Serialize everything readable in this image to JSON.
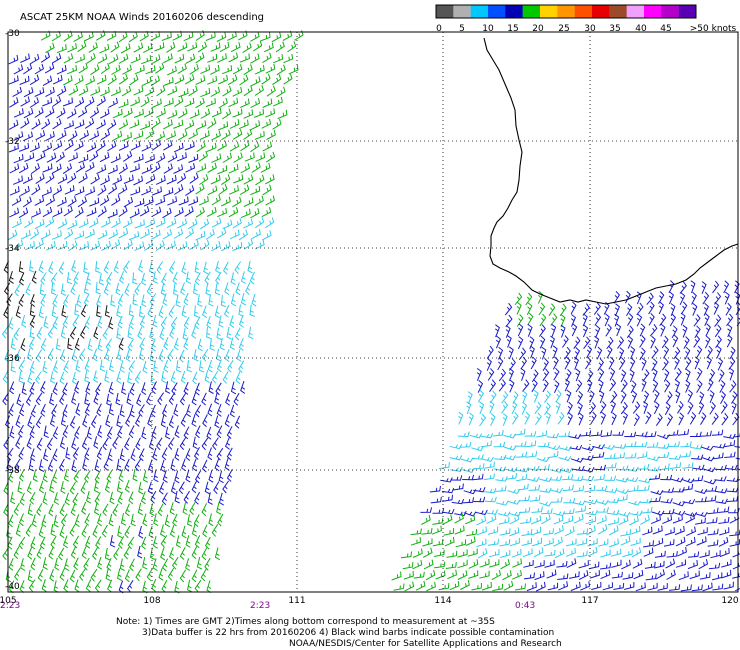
{
  "title": "ASCAT 25KM NOAA Winds 20160206 descending",
  "legend": {
    "segments": [
      {
        "color": "#555555"
      },
      {
        "color": "#b0b0b0"
      },
      {
        "color": "#00c8ff"
      },
      {
        "color": "#0050ff"
      },
      {
        "color": "#0000b4"
      },
      {
        "color": "#00c800"
      },
      {
        "color": "#ffd200"
      },
      {
        "color": "#ff9600"
      },
      {
        "color": "#ff5000"
      },
      {
        "color": "#e60000"
      },
      {
        "color": "#9c4a2a"
      },
      {
        "color": "#f0a0ff"
      },
      {
        "color": "#ff00ff"
      },
      {
        "color": "#b400c8"
      },
      {
        "color": "#5a00b4"
      }
    ],
    "labels": [
      "0",
      "5",
      "10",
      "15",
      "20",
      "25",
      "30",
      "35",
      "40",
      "45",
      ">50 knots"
    ]
  },
  "axes": {
    "lat_labels": [
      "-30",
      "-32",
      "-34",
      "-36",
      "-38",
      "-40"
    ],
    "lon_labels": [
      "105",
      "108",
      "111",
      "114",
      "117",
      "120"
    ]
  },
  "times": {
    "left_start": "2:23",
    "left_end": "2:23",
    "right": "0:43"
  },
  "notes": {
    "line1": "Note: 1) Times are GMT 2)Times along bottom correspond to measurement at ~35S",
    "line2": "3)Data buffer is 22 hrs from 20160206 4) Black wind barbs indicate possible contamination",
    "line3": "NOAA/NESDIS/Center for Satellite Applications and Research"
  },
  "colors": {
    "calm": "#1a1a1a",
    "light": "#33ccee",
    "moderate": "#1a1acc",
    "fresh": "#10b010"
  }
}
